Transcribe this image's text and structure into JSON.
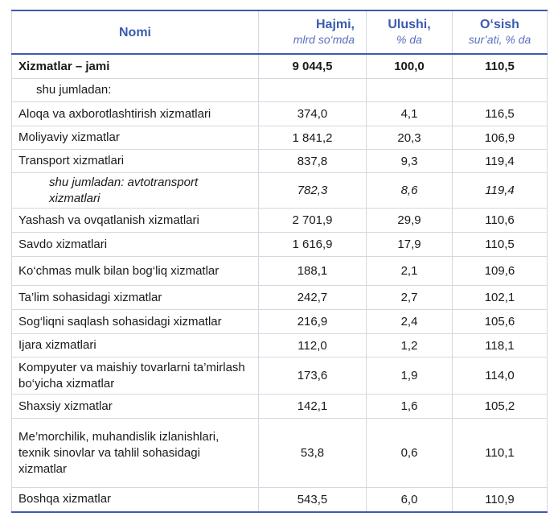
{
  "header": {
    "name": "Nomi",
    "volume": "Hajmi,",
    "volume_unit": "mlrd so‘mda",
    "share": "Ulushi,",
    "share_unit": "% da",
    "growth": "O‘sish",
    "growth_unit": "sur’ati, % da"
  },
  "rows": [
    {
      "name": "Xizmatlar – jami",
      "volume": "9 044,5",
      "share": "100,0",
      "growth": "110,5"
    },
    {
      "name": "shu jumladan:",
      "volume": "",
      "share": "",
      "growth": ""
    },
    {
      "name": "Aloqa va axborotlashtirish xizmatlari",
      "volume": "374,0",
      "share": "4,1",
      "growth": "116,5"
    },
    {
      "name": "Moliyaviy xizmatlar",
      "volume": "1 841,2",
      "share": "20,3",
      "growth": "106,9"
    },
    {
      "name": "Transport xizmatlari",
      "volume": "837,8",
      "share": "9,3",
      "growth": "119,4"
    },
    {
      "name": "shu jumladan: avtotransport xizmatlari",
      "volume": "782,3",
      "share": "8,6",
      "growth": "119,4"
    },
    {
      "name": "Yashash va ovqatlanish xizmatlari",
      "volume": "2 701,9",
      "share": "29,9",
      "growth": "110,6"
    },
    {
      "name": "Savdo xizmatlari",
      "volume": "1 616,9",
      "share": "17,9",
      "growth": "110,5"
    },
    {
      "name": "Ko‘chmas mulk bilan bog‘liq xizmatlar",
      "volume": "188,1",
      "share": "2,1",
      "growth": "109,6"
    },
    {
      "name": "Ta’lim sohasidagi xizmatlar",
      "volume": "242,7",
      "share": "2,7",
      "growth": "102,1"
    },
    {
      "name": "Sog‘liqni saqlash sohasidagi xizmatlar",
      "volume": "216,9",
      "share": "2,4",
      "growth": "105,6"
    },
    {
      "name": "Ijara xizmatlari",
      "volume": "112,0",
      "share": "1,2",
      "growth": "118,1"
    },
    {
      "name": "Kompyuter va maishiy tovarlarni ta’mirlash bo‘yicha xizmatlar",
      "volume": "173,6",
      "share": "1,9",
      "growth": "114,0"
    },
    {
      "name": "Shaxsiy xizmatlar",
      "volume": "142,1",
      "share": "1,6",
      "growth": "105,2"
    },
    {
      "name": "Me’morchilik, muhandislik izlanishlari, texnik sinovlar va tahlil sohasidagi xizmatlar",
      "volume": "53,8",
      "share": "0,6",
      "growth": "110,1"
    },
    {
      "name": "Boshqa xizmatlar",
      "volume": "543,5",
      "share": "6,0",
      "growth": "110,9"
    }
  ],
  "colors": {
    "accent": "#3a5bb0",
    "grid": "#d4d8e0"
  }
}
